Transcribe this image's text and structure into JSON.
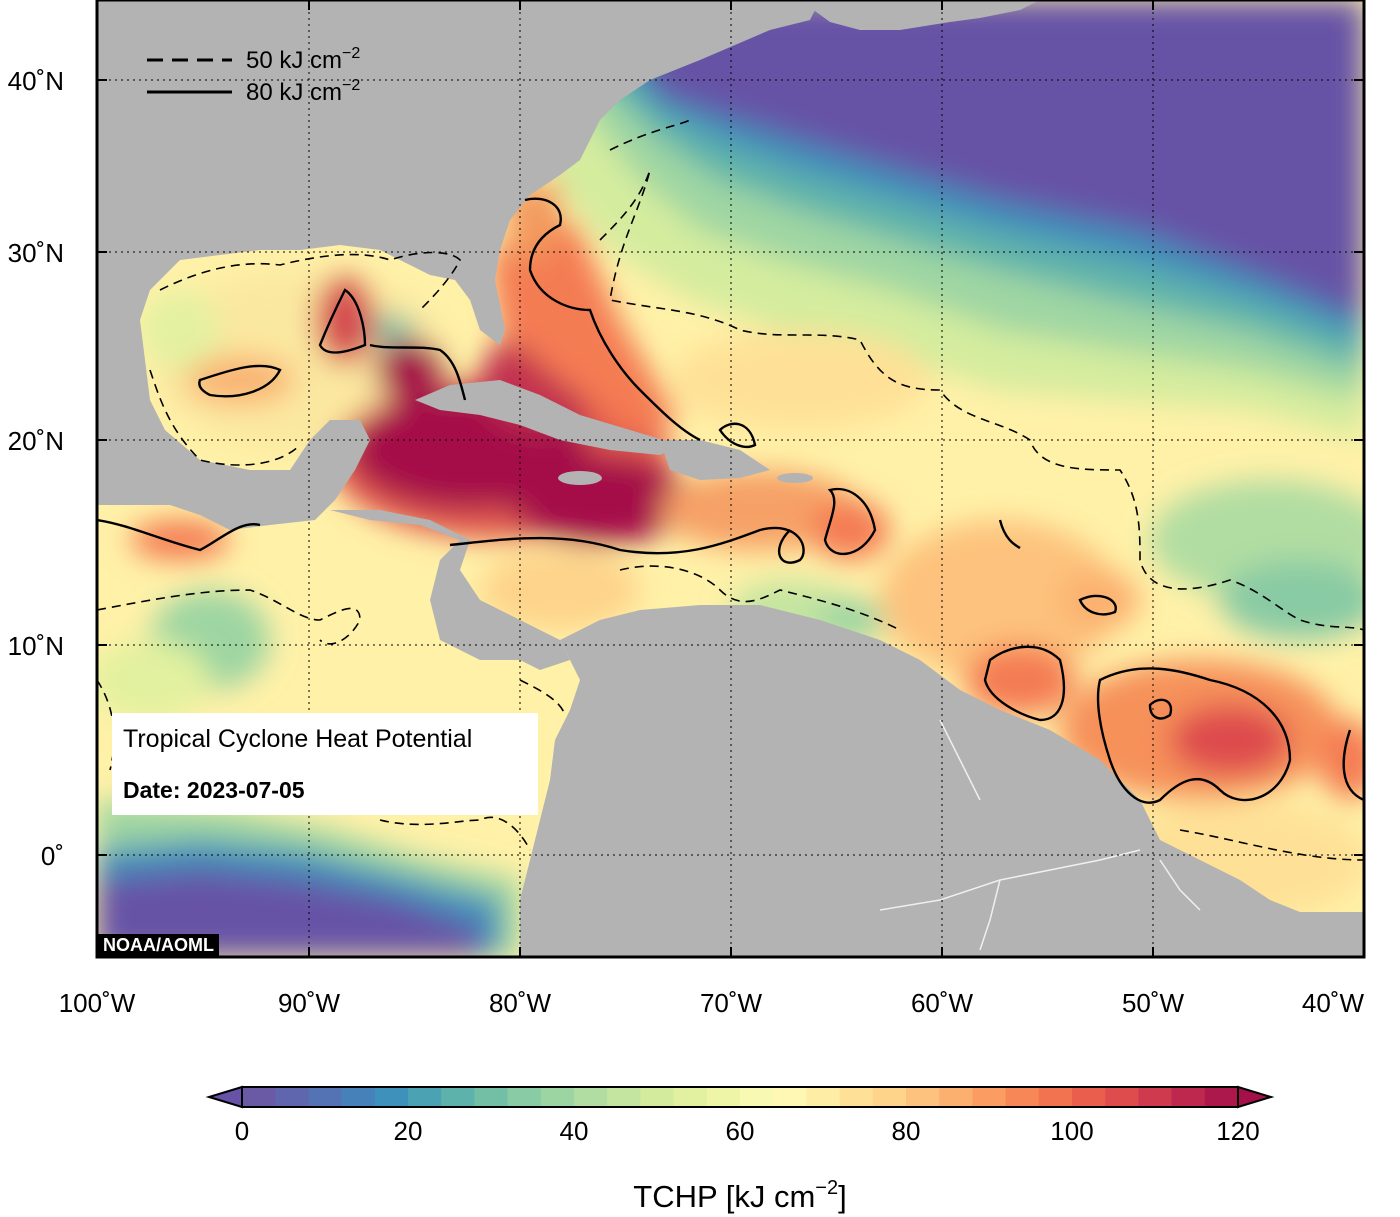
{
  "map": {
    "info_title": "Tropical Cyclone Heat Potential",
    "info_date": "Date: 2023-07-05",
    "credit": "NOAA/AOML",
    "legend": {
      "dashed_prefix": "50 kJ cm",
      "solid_prefix": "80 kJ cm",
      "exponent": "−2"
    },
    "lon_ticks": [
      "100˚W",
      "90˚W",
      "80˚W",
      "70˚W",
      "60˚W",
      "50˚W",
      "40˚W"
    ],
    "lat_ticks": [
      "40˚N",
      "30˚N",
      "20˚N",
      "10˚N",
      "0˚"
    ],
    "extent": {
      "lon": [
        -100,
        -40
      ],
      "lat": [
        -6,
        44
      ]
    },
    "colors": {
      "land": "#b3b3b3",
      "cold": "#6652a6",
      "hot": "#a50f4a"
    }
  },
  "colorbar": {
    "title_prefix": "TCHP [kJ cm",
    "title_exponent": "−2",
    "title_suffix": "]",
    "ticks": [
      "0",
      "20",
      "40",
      "60",
      "80",
      "100",
      "120"
    ],
    "range": [
      0,
      120
    ],
    "colors": [
      "#6a5aa6",
      "#5f66ad",
      "#5373b4",
      "#4681ba",
      "#3d91bb",
      "#4aa2b3",
      "#5db2ab",
      "#72bfa6",
      "#89cba4",
      "#9dd5a2",
      "#b1dda2",
      "#c4e5a0",
      "#d3eb9d",
      "#e2f19f",
      "#eef5a6",
      "#f8f9b2",
      "#fff8b5",
      "#feeda5",
      "#fee196",
      "#fed38a",
      "#fdc27d",
      "#fcb070",
      "#fb9c62",
      "#f78756",
      "#f27350",
      "#ea5e4e",
      "#de4c4e",
      "#cf3a4f",
      "#be284f",
      "#ac174c"
    ]
  }
}
